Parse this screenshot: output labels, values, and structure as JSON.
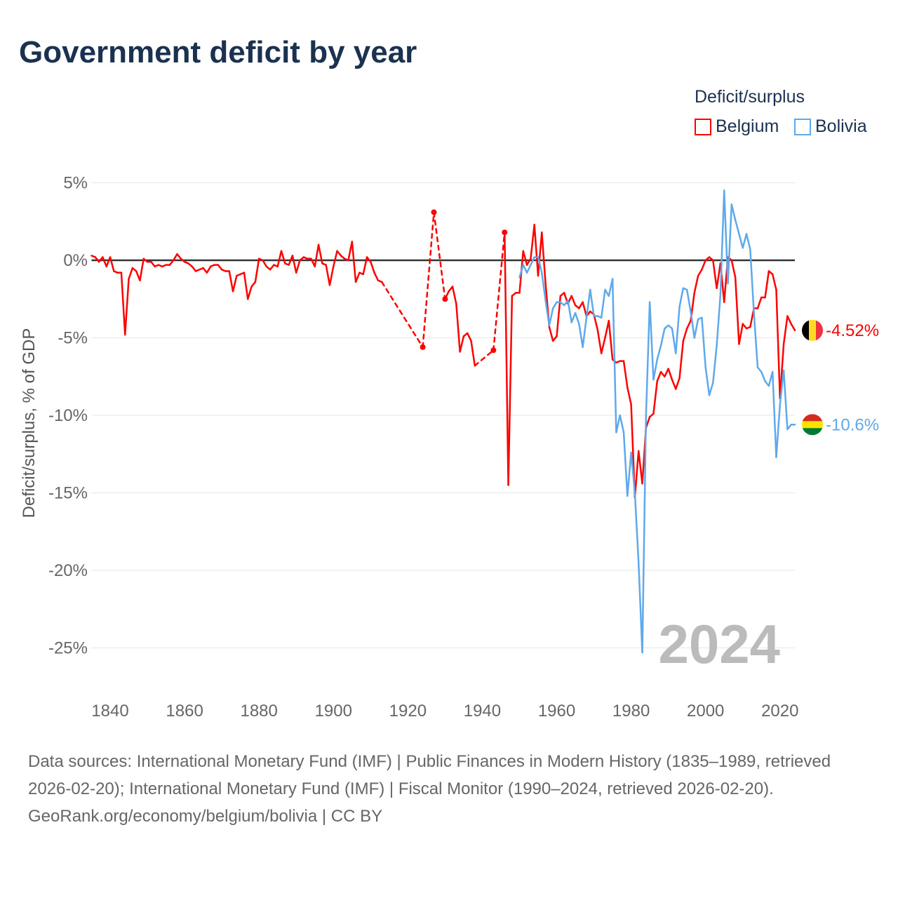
{
  "title": "Government deficit by year",
  "legend": {
    "title": "Deficit/surplus",
    "items": [
      {
        "name": "Belgium",
        "color": "#ff0000"
      },
      {
        "name": "Bolivia",
        "color": "#5ea8ec"
      }
    ]
  },
  "footer": {
    "sources": "Data sources: International Monetary Fund (IMF) | Public Finances in Modern History (1835–1989, retrieved 2026-02-20); International Monetary Fund (IMF) | Fiscal Monitor (1990–2024, retrieved 2026-02-20).",
    "credit": "GeoRank.org/economy/belgium/bolivia | CC BY"
  },
  "chart_data": {
    "type": "line",
    "title": "Government deficit by year",
    "xlabel": "",
    "ylabel": "Deficit/surplus, % of GDP",
    "xlim": [
      1835,
      2024
    ],
    "ylim": [
      -27,
      6
    ],
    "xticks": [
      1840,
      1860,
      1880,
      1900,
      1920,
      1940,
      1960,
      1980,
      2000,
      2020
    ],
    "yticks": [
      {
        "v": 5,
        "label": "5%"
      },
      {
        "v": 0,
        "label": "0%"
      },
      {
        "v": -5,
        "label": "-5%"
      },
      {
        "v": -10,
        "label": "-10%"
      },
      {
        "v": -15,
        "label": "-15%"
      },
      {
        "v": -20,
        "label": "-20%"
      },
      {
        "v": -25,
        "label": "-25%"
      }
    ],
    "year_label": "2024",
    "series": [
      {
        "name": "Belgium",
        "color": "#ff0000",
        "end_label": "-4.52%",
        "flag": [
          "#000000",
          "#fdda24",
          "#ef3340"
        ],
        "x": [
          1835,
          1836,
          1837,
          1838,
          1839,
          1840,
          1841,
          1842,
          1843,
          1844,
          1845,
          1846,
          1847,
          1848,
          1849,
          1850,
          1851,
          1852,
          1853,
          1854,
          1855,
          1856,
          1857,
          1858,
          1859,
          1860,
          1861,
          1862,
          1863,
          1864,
          1865,
          1866,
          1867,
          1868,
          1869,
          1870,
          1871,
          1872,
          1873,
          1874,
          1875,
          1876,
          1877,
          1878,
          1879,
          1880,
          1881,
          1882,
          1883,
          1884,
          1885,
          1886,
          1887,
          1888,
          1889,
          1890,
          1891,
          1892,
          1893,
          1894,
          1895,
          1896,
          1897,
          1898,
          1899,
          1900,
          1901,
          1902,
          1903,
          1904,
          1905,
          1906,
          1907,
          1908,
          1909,
          1910,
          1911,
          1912,
          1913,
          1924,
          1927,
          1930,
          1931,
          1932,
          1933,
          1934,
          1935,
          1936,
          1937,
          1938,
          1943,
          1946,
          1947,
          1948,
          1949,
          1950,
          1951,
          1952,
          1953,
          1954,
          1955,
          1956,
          1957,
          1958,
          1959,
          1960,
          1961,
          1962,
          1963,
          1964,
          1965,
          1966,
          1967,
          1968,
          1969,
          1970,
          1971,
          1972,
          1973,
          1974,
          1975,
          1976,
          1977,
          1978,
          1979,
          1980,
          1981,
          1982,
          1983,
          1984,
          1985,
          1986,
          1987,
          1988,
          1989,
          1990,
          1991,
          1992,
          1993,
          1994,
          1995,
          1996,
          1997,
          1998,
          1999,
          2000,
          2001,
          2002,
          2003,
          2004,
          2005,
          2006,
          2007,
          2008,
          2009,
          2010,
          2011,
          2012,
          2013,
          2014,
          2015,
          2016,
          2017,
          2018,
          2019,
          2020,
          2021,
          2022,
          2023,
          2024
        ],
        "y": [
          0.3,
          0.2,
          -0.1,
          0.2,
          -0.4,
          0.2,
          -0.7,
          -0.8,
          -0.8,
          -4.8,
          -1.2,
          -0.5,
          -0.7,
          -1.3,
          0.1,
          -0.1,
          -0.1,
          -0.4,
          -0.3,
          -0.4,
          -0.3,
          -0.3,
          0.0,
          0.4,
          0.1,
          -0.1,
          -0.2,
          -0.4,
          -0.7,
          -0.6,
          -0.5,
          -0.8,
          -0.4,
          -0.3,
          -0.3,
          -0.6,
          -0.7,
          -0.7,
          -2.0,
          -1.0,
          -0.9,
          -0.8,
          -2.5,
          -1.7,
          -1.4,
          0.1,
          0.0,
          -0.4,
          -0.6,
          -0.3,
          -0.4,
          0.6,
          -0.2,
          -0.3,
          0.3,
          -0.8,
          0.0,
          0.2,
          0.1,
          0.1,
          -0.4,
          1.0,
          -0.2,
          -0.3,
          -1.6,
          -0.4,
          0.6,
          0.3,
          0.1,
          0.0,
          1.2,
          -1.4,
          -0.8,
          -0.9,
          0.2,
          -0.1,
          -0.8,
          -1.3,
          -1.4,
          -5.6,
          3.1,
          -2.5,
          -2.0,
          -1.7,
          -2.8,
          -5.9,
          -4.9,
          -4.7,
          -5.2,
          -6.8,
          -5.8,
          1.8,
          -14.5,
          -2.3,
          -2.1,
          -2.1,
          0.6,
          -0.3,
          0.1,
          2.3,
          -1.0,
          1.8,
          -1.5,
          -4.3,
          -5.2,
          -4.9,
          -2.3,
          -2.1,
          -2.8,
          -2.3,
          -2.9,
          -3.1,
          -2.7,
          -3.6,
          -3.3,
          -3.5,
          -4.5,
          -6.0,
          -5.0,
          -3.9,
          -6.4,
          -6.6,
          -6.5,
          -6.5,
          -8.2,
          -9.3,
          -15.3,
          -12.3,
          -14.4,
          -10.8,
          -10.1,
          -9.9,
          -7.8,
          -7.2,
          -7.5,
          -7.0,
          -7.7,
          -8.3,
          -7.6,
          -5.2,
          -4.4,
          -3.9,
          -2.1,
          -1.0,
          -0.6,
          0.0,
          0.2,
          0.0,
          -1.8,
          -0.2,
          -2.7,
          0.2,
          0.0,
          -1.1,
          -5.4,
          -4.1,
          -4.4,
          -4.3,
          -3.1,
          -3.1,
          -2.4,
          -2.4,
          -0.7,
          -0.9,
          -1.9,
          -8.9,
          -5.4,
          -3.6,
          -4.1,
          -4.52
        ]
      },
      {
        "name": "Bolivia",
        "color": "#5ea8ec",
        "end_label": "-10.6%",
        "flag": [
          "#d52b1e",
          "#f9e300",
          "#007934"
        ],
        "x": [
          1950,
          1951,
          1952,
          1953,
          1954,
          1955,
          1956,
          1957,
          1958,
          1959,
          1960,
          1961,
          1962,
          1963,
          1964,
          1965,
          1966,
          1967,
          1968,
          1969,
          1970,
          1971,
          1972,
          1973,
          1974,
          1975,
          1976,
          1977,
          1978,
          1979,
          1980,
          1981,
          1982,
          1983,
          1984,
          1985,
          1986,
          1987,
          1988,
          1989,
          1990,
          1991,
          1992,
          1993,
          1994,
          1995,
          1996,
          1997,
          1998,
          1999,
          2000,
          2001,
          2002,
          2003,
          2004,
          2005,
          2006,
          2007,
          2008,
          2009,
          2010,
          2011,
          2012,
          2013,
          2014,
          2015,
          2016,
          2017,
          2018,
          2019,
          2020,
          2021,
          2022,
          2023,
          2024
        ],
        "y": [
          -1.1,
          -0.3,
          -0.8,
          -0.3,
          0.2,
          0.2,
          -0.8,
          -2.6,
          -4.2,
          -3.1,
          -2.7,
          -2.7,
          -2.9,
          -2.6,
          -4.0,
          -3.4,
          -4.1,
          -5.6,
          -3.7,
          -1.9,
          -3.6,
          -3.6,
          -3.7,
          -1.9,
          -2.3,
          -1.2,
          -11.1,
          -10.0,
          -11.1,
          -15.2,
          -12.4,
          -15.0,
          -19.5,
          -25.3,
          -10.0,
          -2.7,
          -7.7,
          -6.4,
          -5.5,
          -4.4,
          -4.2,
          -4.4,
          -6.0,
          -3.0,
          -1.8,
          -1.9,
          -3.3,
          -5.0,
          -3.8,
          -3.7,
          -6.9,
          -8.7,
          -7.9,
          -5.5,
          -2.2,
          4.5,
          -1.5,
          3.6,
          2.6,
          1.7,
          0.8,
          1.7,
          0.7,
          -3.4,
          -6.9,
          -7.2,
          -7.8,
          -8.1,
          -7.2,
          -12.7,
          -9.3,
          -7.1,
          -10.9,
          -10.6,
          -10.6
        ]
      }
    ]
  }
}
